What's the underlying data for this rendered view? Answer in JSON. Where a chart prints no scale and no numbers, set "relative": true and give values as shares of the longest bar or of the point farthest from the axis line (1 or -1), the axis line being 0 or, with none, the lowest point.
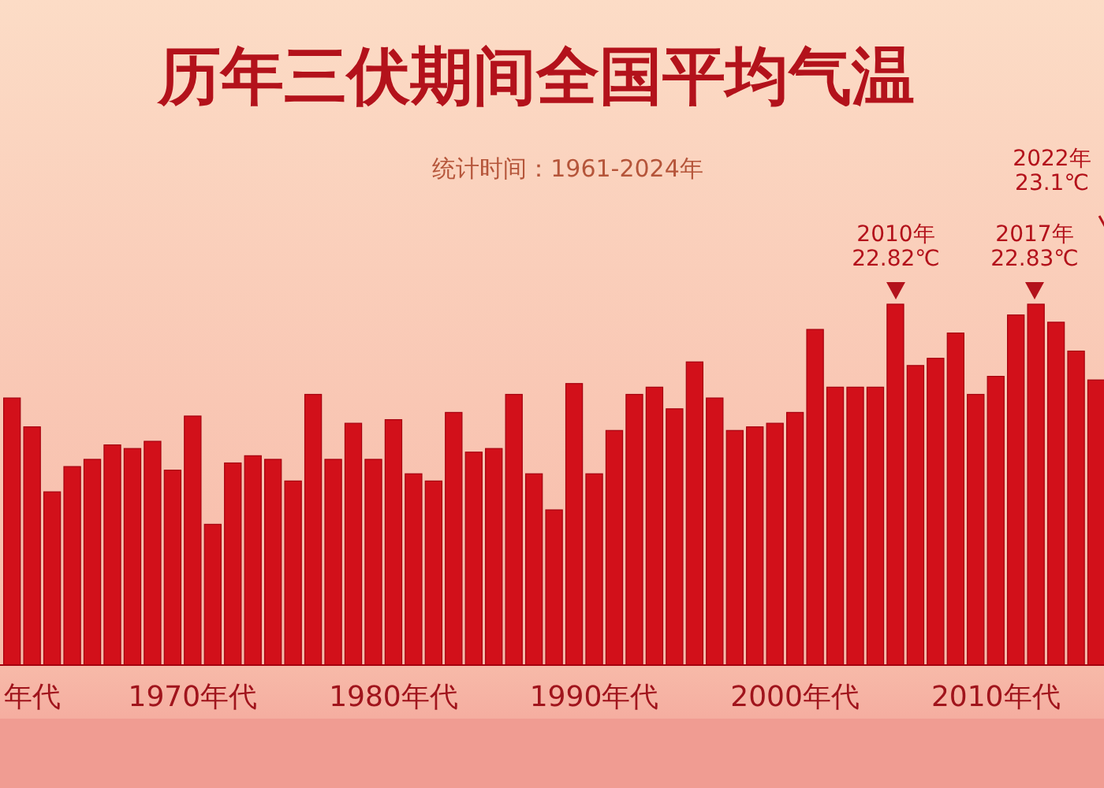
{
  "chart_data": {
    "type": "bar",
    "title": "历年三伏期间全国平均气温",
    "subtitle": "统计时间：1961-2024年",
    "relative": true,
    "color": "#d2101a",
    "categories": [
      null,
      "年代",
      null,
      null,
      null,
      null,
      null,
      null,
      null,
      "1970年代",
      null,
      null,
      null,
      null,
      null,
      null,
      null,
      null,
      null,
      "1980年代",
      null,
      null,
      null,
      null,
      null,
      null,
      null,
      null,
      null,
      "1990年代",
      null,
      null,
      null,
      null,
      null,
      null,
      null,
      null,
      null,
      "2000年代",
      null,
      null,
      null,
      null,
      null,
      null,
      null,
      null,
      null,
      "2010年代",
      null,
      null,
      null,
      null,
      null
    ],
    "values": [
      0.74,
      0.66,
      0.48,
      0.55,
      0.57,
      0.61,
      0.6,
      0.62,
      0.54,
      0.69,
      0.39,
      0.56,
      0.58,
      0.57,
      0.51,
      0.75,
      0.57,
      0.67,
      0.57,
      0.68,
      0.53,
      0.51,
      0.7,
      0.59,
      0.6,
      0.75,
      0.53,
      0.43,
      0.78,
      0.53,
      0.65,
      0.75,
      0.77,
      0.71,
      0.84,
      0.74,
      0.65,
      0.66,
      0.67,
      0.7,
      0.93,
      0.77,
      0.77,
      0.77,
      1.0,
      0.83,
      0.85,
      0.92,
      0.75,
      0.8,
      0.97,
      1.0,
      0.95,
      0.87,
      0.79
    ],
    "annotations": [
      "2010年\n22.82℃",
      "2017年\n22.83℃",
      "2022年\n23.1℃"
    ]
  }
}
